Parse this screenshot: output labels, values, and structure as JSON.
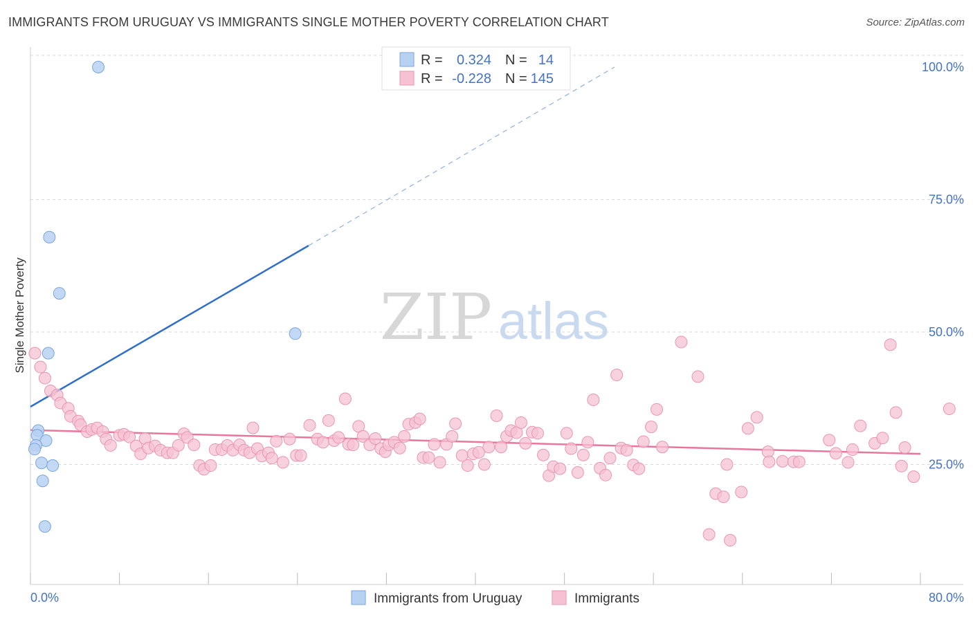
{
  "title": "IMMIGRANTS FROM URUGUAY VS IMMIGRANTS SINGLE MOTHER POVERTY CORRELATION CHART",
  "source": "Source: ZipAtlas.com",
  "watermark": {
    "zip": "ZIP",
    "atlas": "atlas"
  },
  "colors": {
    "blue_fill": "#b7d1f2",
    "blue_stroke": "#7aa6dd",
    "blue_line": "#2e6fcc",
    "pink_fill": "#f6c2d3",
    "pink_stroke": "#e995b3",
    "pink_line": "#e8769d",
    "tick_text": "#4472c4",
    "grid": "#d9d9d9"
  },
  "legend_top": {
    "rows": [
      {
        "r_label": "R =",
        "r_value": "0.324",
        "n_label": "N =",
        "n_value": "14",
        "swatch": "blue"
      },
      {
        "r_label": "R =",
        "r_value": "-0.228",
        "n_label": "N =",
        "n_value": "145",
        "swatch": "pink"
      }
    ]
  },
  "legend_bottom": [
    {
      "label": "Immigrants from Uruguay",
      "swatch": "blue"
    },
    {
      "label": "Immigrants",
      "swatch": "pink"
    }
  ],
  "chart_data": {
    "type": "scatter",
    "title": "IMMIGRANTS FROM URUGUAY VS IMMIGRANTS SINGLE MOTHER POVERTY CORRELATION CHART",
    "xlabel": "",
    "ylabel": "Single Mother Poverty",
    "xlim": [
      0,
      80
    ],
    "ylim": [
      0,
      100
    ],
    "x_tick_labels": [
      "0.0%",
      "80.0%"
    ],
    "y_ticks": [
      25,
      50,
      75,
      100
    ],
    "y_tick_labels": [
      "25.0%",
      "50.0%",
      "75.0%",
      "100.0%"
    ],
    "grid": true,
    "legend_position": "top-center",
    "series": [
      {
        "name": "Immigrants from Uruguay",
        "color": "blue",
        "points": [
          [
            6.1,
            100.0
          ],
          [
            1.7,
            67.9
          ],
          [
            2.6,
            57.3
          ],
          [
            23.8,
            49.7
          ],
          [
            1.6,
            46.0
          ],
          [
            0.7,
            31.4
          ],
          [
            0.6,
            30.5
          ],
          [
            1.4,
            29.5
          ],
          [
            0.5,
            28.6
          ],
          [
            0.3,
            27.9
          ],
          [
            1.0,
            25.3
          ],
          [
            2.0,
            24.8
          ],
          [
            1.1,
            21.9
          ],
          [
            1.3,
            13.3
          ]
        ],
        "trend": {
          "x0": 0.0,
          "y0": 35.9,
          "x1": 25.0,
          "y1": 66.3,
          "dashed_to_x": 52.5,
          "dashed_to_y": 100.0
        }
      },
      {
        "name": "Immigrants",
        "color": "pink",
        "points": [
          [
            0.4,
            46.0
          ],
          [
            0.9,
            43.4
          ],
          [
            1.3,
            41.3
          ],
          [
            1.8,
            38.9
          ],
          [
            2.4,
            38.1
          ],
          [
            2.7,
            36.6
          ],
          [
            3.4,
            35.6
          ],
          [
            3.6,
            34.1
          ],
          [
            4.3,
            33.2
          ],
          [
            4.5,
            32.5
          ],
          [
            5.1,
            31.2
          ],
          [
            5.5,
            31.6
          ],
          [
            6.0,
            31.9
          ],
          [
            6.5,
            31.2
          ],
          [
            6.8,
            29.8
          ],
          [
            7.2,
            28.6
          ],
          [
            8.0,
            30.5
          ],
          [
            8.4,
            30.7
          ],
          [
            8.9,
            30.2
          ],
          [
            9.5,
            28.5
          ],
          [
            9.9,
            27.0
          ],
          [
            10.3,
            29.9
          ],
          [
            10.6,
            28.1
          ],
          [
            11.2,
            28.5
          ],
          [
            11.7,
            27.7
          ],
          [
            12.3,
            27.2
          ],
          [
            12.8,
            27.2
          ],
          [
            13.3,
            28.6
          ],
          [
            13.8,
            30.8
          ],
          [
            14.1,
            30.1
          ],
          [
            14.7,
            28.7
          ],
          [
            15.2,
            24.8
          ],
          [
            15.6,
            24.1
          ],
          [
            16.2,
            24.8
          ],
          [
            16.6,
            27.8
          ],
          [
            17.2,
            27.8
          ],
          [
            17.7,
            28.6
          ],
          [
            18.2,
            27.7
          ],
          [
            18.8,
            28.7
          ],
          [
            19.2,
            27.7
          ],
          [
            19.7,
            27.2
          ],
          [
            20.0,
            31.9
          ],
          [
            20.4,
            28.0
          ],
          [
            20.8,
            26.6
          ],
          [
            21.4,
            27.2
          ],
          [
            21.7,
            26.2
          ],
          [
            22.1,
            29.4
          ],
          [
            22.7,
            25.4
          ],
          [
            23.3,
            29.8
          ],
          [
            23.9,
            26.7
          ],
          [
            24.3,
            26.7
          ],
          [
            25.1,
            32.4
          ],
          [
            25.8,
            29.8
          ],
          [
            26.3,
            29.2
          ],
          [
            26.8,
            33.3
          ],
          [
            27.3,
            29.5
          ],
          [
            27.7,
            30.1
          ],
          [
            28.3,
            37.4
          ],
          [
            28.6,
            28.8
          ],
          [
            29.0,
            28.7
          ],
          [
            29.5,
            32.2
          ],
          [
            29.9,
            30.3
          ],
          [
            30.5,
            28.7
          ],
          [
            31.0,
            29.9
          ],
          [
            31.5,
            28.0
          ],
          [
            31.9,
            27.4
          ],
          [
            32.2,
            28.7
          ],
          [
            32.7,
            29.2
          ],
          [
            33.2,
            28.1
          ],
          [
            33.6,
            30.3
          ],
          [
            34.0,
            32.6
          ],
          [
            34.6,
            32.9
          ],
          [
            35.0,
            33.6
          ],
          [
            35.3,
            26.3
          ],
          [
            35.8,
            26.3
          ],
          [
            36.3,
            28.8
          ],
          [
            36.8,
            25.4
          ],
          [
            37.4,
            28.8
          ],
          [
            37.9,
            30.3
          ],
          [
            38.2,
            32.7
          ],
          [
            38.8,
            26.7
          ],
          [
            39.3,
            24.8
          ],
          [
            39.8,
            27.0
          ],
          [
            40.3,
            27.3
          ],
          [
            40.8,
            25.0
          ],
          [
            41.2,
            28.3
          ],
          [
            41.9,
            34.2
          ],
          [
            42.3,
            28.3
          ],
          [
            42.8,
            30.3
          ],
          [
            43.2,
            31.4
          ],
          [
            43.7,
            31.0
          ],
          [
            44.1,
            32.9
          ],
          [
            44.5,
            29.0
          ],
          [
            45.1,
            31.1
          ],
          [
            45.6,
            30.9
          ],
          [
            46.1,
            26.8
          ],
          [
            46.6,
            22.9
          ],
          [
            47.0,
            24.6
          ],
          [
            47.6,
            24.2
          ],
          [
            48.2,
            30.9
          ],
          [
            48.6,
            28.0
          ],
          [
            49.2,
            23.5
          ],
          [
            49.7,
            26.8
          ],
          [
            50.1,
            29.2
          ],
          [
            50.6,
            37.2
          ],
          [
            51.2,
            24.3
          ],
          [
            51.7,
            23.0
          ],
          [
            52.1,
            26.2
          ],
          [
            52.7,
            41.9
          ],
          [
            53.1,
            28.1
          ],
          [
            53.6,
            27.7
          ],
          [
            54.2,
            24.9
          ],
          [
            54.7,
            24.2
          ],
          [
            55.1,
            29.3
          ],
          [
            55.8,
            32.1
          ],
          [
            56.3,
            35.4
          ],
          [
            56.8,
            28.3
          ],
          [
            58.5,
            48.1
          ],
          [
            60.0,
            41.6
          ],
          [
            61.0,
            11.8
          ],
          [
            61.6,
            19.5
          ],
          [
            62.3,
            18.9
          ],
          [
            62.6,
            25.0
          ],
          [
            62.9,
            10.7
          ],
          [
            63.9,
            19.8
          ],
          [
            64.5,
            31.8
          ],
          [
            65.3,
            33.9
          ],
          [
            66.3,
            27.4
          ],
          [
            66.4,
            25.5
          ],
          [
            67.6,
            25.6
          ],
          [
            68.6,
            25.5
          ],
          [
            69.1,
            25.5
          ],
          [
            71.8,
            29.6
          ],
          [
            72.4,
            27.1
          ],
          [
            73.5,
            25.4
          ],
          [
            73.9,
            27.8
          ],
          [
            74.6,
            32.3
          ],
          [
            75.9,
            29.0
          ],
          [
            76.6,
            30.0
          ],
          [
            77.3,
            47.6
          ],
          [
            77.8,
            34.8
          ],
          [
            78.3,
            24.7
          ],
          [
            78.6,
            28.2
          ],
          [
            79.4,
            22.7
          ],
          [
            82.6,
            35.5
          ]
        ],
        "trend": {
          "x0": 0.0,
          "y0": 31.5,
          "x1": 80.0,
          "y1": 27.0
        }
      }
    ]
  }
}
